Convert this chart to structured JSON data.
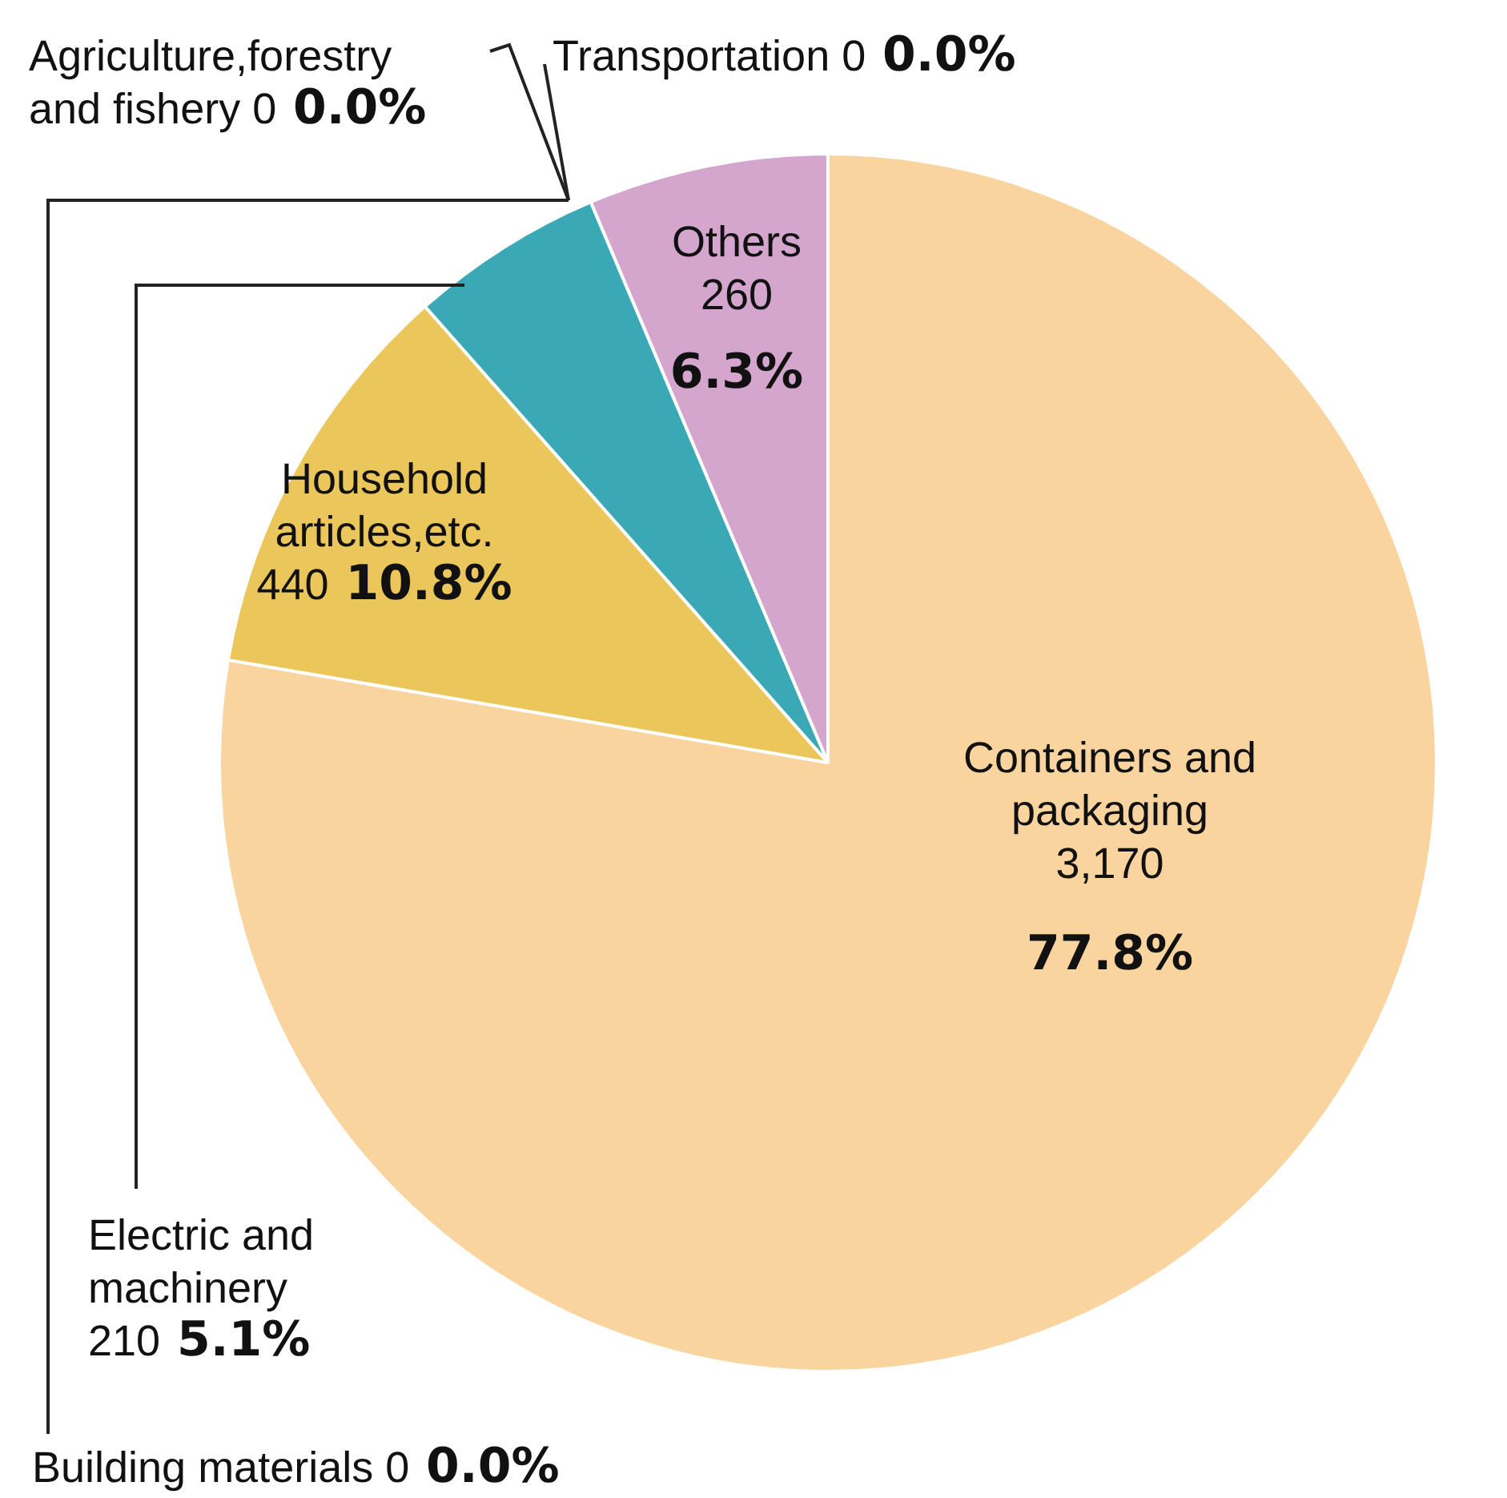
{
  "chart_data": {
    "type": "pie",
    "categories": [
      "Containers and packaging",
      "Household articles,etc.",
      "Electric and machinery",
      "Building materials",
      "Agriculture,forestry and fishery",
      "Transportation",
      "Others"
    ],
    "values": [
      3170,
      440,
      210,
      0,
      0,
      0,
      260
    ],
    "colors": [
      "#f9d49e",
      "#ebc65a",
      "#3aa9b5",
      "#bbbbbb",
      "#bbbbbb",
      "#bbbbbb",
      "#d4a5cd"
    ],
    "value_labels": [
      "3,170 77.8%",
      "440 10.8%",
      "210 5.1%",
      "0 0.0%",
      "0 0.0%",
      "0 0.0%",
      "260 6.3%"
    ],
    "legend": false
  }
}
